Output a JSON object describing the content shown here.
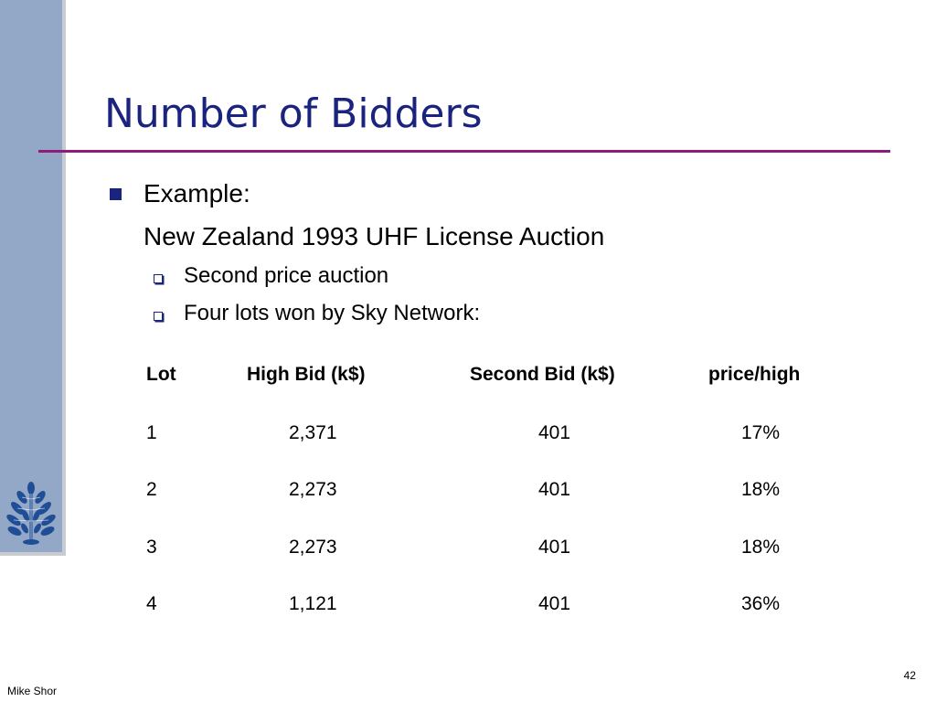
{
  "slide": {
    "title": "Number of Bidders",
    "bullet": {
      "line1": "Example:",
      "line2": "New Zealand 1993 UHF License Auction"
    },
    "sub_items": [
      "Second price auction",
      "Four lots won by Sky Network:"
    ],
    "table": {
      "headers": [
        "Lot",
        "High Bid (k$)",
        "Second Bid (k$)",
        "price/high"
      ],
      "rows": [
        [
          "1",
          "2,371",
          "401",
          "17%"
        ],
        [
          "2",
          "2,273",
          "401",
          "18%"
        ],
        [
          "3",
          "2,273",
          "401",
          "18%"
        ],
        [
          "4",
          "1,121",
          "401",
          "36%"
        ]
      ]
    },
    "footer": {
      "author": "Mike Shor",
      "page_number": "42"
    }
  },
  "colors": {
    "title": "#1a237e",
    "rule": "#8e1b7e",
    "sidebar": "#93a8c6",
    "logo": "#1f4e96"
  },
  "icons": {
    "logo": "oak-leaf-logo-icon",
    "main_bullet": "square-bullet-icon",
    "sub_bullet": "hollow-square-bullet-icon"
  }
}
